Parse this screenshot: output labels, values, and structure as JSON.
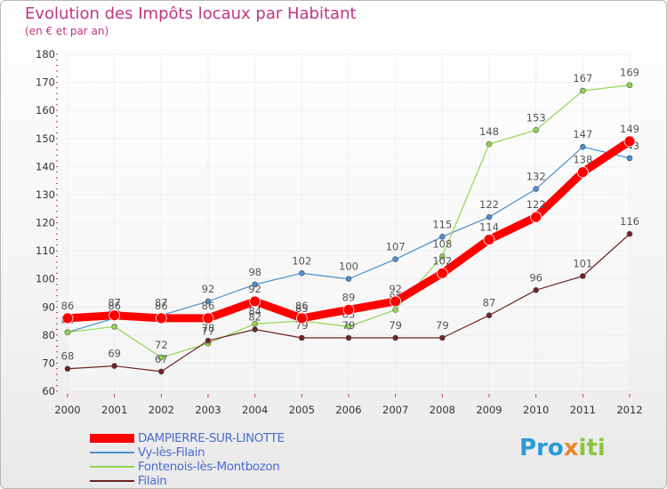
{
  "chart_data": {
    "type": "line",
    "title": "Evolution des Impôts locaux par Habitant",
    "subtitle": "(en € et par an)",
    "xlabel": "",
    "ylabel": "",
    "ylim": [
      60,
      180
    ],
    "yticks": [
      60,
      70,
      80,
      90,
      100,
      110,
      120,
      130,
      140,
      150,
      160,
      170,
      180
    ],
    "categories": [
      "2000",
      "2001",
      "2002",
      "2003",
      "2004",
      "2005",
      "2006",
      "2007",
      "2008",
      "2009",
      "2010",
      "2011",
      "2012"
    ],
    "grid": true,
    "series": [
      {
        "name": "Vy-lès-Filain",
        "color": "#4a8fd0",
        "values": [
          81,
          86,
          87,
          92,
          98,
          102,
          100,
          107,
          115,
          122,
          132,
          147,
          143
        ]
      },
      {
        "name": "Fontenois-lès-Montbozon",
        "color": "#8fd64e",
        "values": [
          81,
          83,
          72,
          77,
          84,
          85,
          83,
          89,
          108,
          148,
          153,
          167,
          169
        ]
      },
      {
        "name": "Filain",
        "color": "#6e2424",
        "values": [
          68,
          69,
          67,
          78,
          82,
          79,
          79,
          79,
          79,
          87,
          96,
          101,
          116
        ]
      },
      {
        "name": "DAMPIERRE-SUR-LINOTTE",
        "color": "#ff0000",
        "values": [
          86,
          87,
          86,
          86,
          92,
          86,
          89,
          92,
          102,
          114,
          122,
          138,
          149
        ]
      }
    ],
    "legend": [
      "DAMPIERRE-SUR-LINOTTE",
      "Vy-lès-Filain",
      "Fontenois-lès-Montbozon",
      "Filain"
    ],
    "legend_position": "bottom-left"
  },
  "logo": {
    "part1": "Pro",
    "part2": "x",
    "part3": "iti"
  }
}
